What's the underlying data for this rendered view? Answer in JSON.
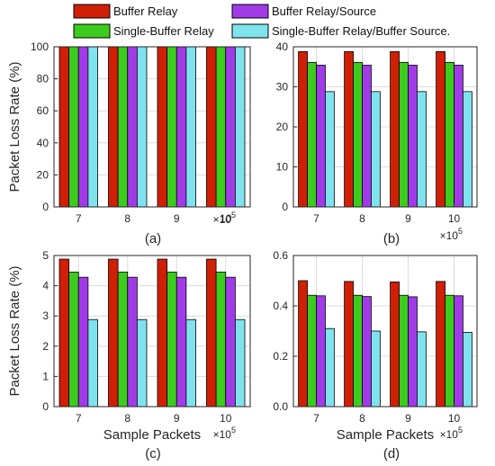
{
  "legend": {
    "items": [
      {
        "label": "Buffer Relay",
        "color": "#d11f05"
      },
      {
        "label": "Buffer Relay/Source",
        "color": "#a13be8"
      },
      {
        "label": "Single-Buffer Relay",
        "color": "#3bcc1e"
      },
      {
        "label": "Single-Buffer Relay/Buffer Source.",
        "color": "#7fe3ee"
      }
    ]
  },
  "chart_data": [
    {
      "type": "bar",
      "panel": "(a)",
      "categories": [
        "7",
        "8",
        "9",
        "10"
      ],
      "x_multiplier": "×10^5",
      "ylabel": "Packet Loss Rate (%)",
      "xlabel": "",
      "ylim": [
        0,
        100
      ],
      "yticks": [
        0,
        20,
        40,
        60,
        80,
        100
      ],
      "series": [
        {
          "name": "Buffer Relay",
          "values": [
            100,
            100,
            100,
            100
          ]
        },
        {
          "name": "Single-Buffer Relay",
          "values": [
            100,
            100,
            100,
            100
          ]
        },
        {
          "name": "Buffer Relay/Source",
          "values": [
            100,
            100,
            100,
            100
          ]
        },
        {
          "name": "Single-Buffer Relay/Buffer Source.",
          "values": [
            100,
            100,
            100,
            100
          ]
        }
      ]
    },
    {
      "type": "bar",
      "panel": "(b)",
      "categories": [
        "7",
        "8",
        "9",
        "10"
      ],
      "x_multiplier": "×10^5",
      "ylabel": "",
      "xlabel": "",
      "ylim": [
        0,
        40
      ],
      "yticks": [
        0,
        10,
        20,
        30,
        40
      ],
      "series": [
        {
          "name": "Buffer Relay",
          "values": [
            38.8,
            38.8,
            38.8,
            38.8
          ]
        },
        {
          "name": "Single-Buffer Relay",
          "values": [
            36.1,
            36.1,
            36.1,
            36.1
          ]
        },
        {
          "name": "Buffer Relay/Source",
          "values": [
            35.4,
            35.4,
            35.4,
            35.4
          ]
        },
        {
          "name": "Single-Buffer Relay/Buffer Source.",
          "values": [
            28.8,
            28.8,
            28.8,
            28.8
          ]
        }
      ]
    },
    {
      "type": "bar",
      "panel": "(c)",
      "categories": [
        "7",
        "8",
        "9",
        "10"
      ],
      "x_multiplier": "×10^5",
      "ylabel": "Packet Loss Rate (%)",
      "xlabel": "Sample Packets",
      "ylim": [
        0,
        5
      ],
      "yticks": [
        0,
        1,
        2,
        3,
        4,
        5
      ],
      "series": [
        {
          "name": "Buffer Relay",
          "values": [
            4.88,
            4.88,
            4.88,
            4.88
          ]
        },
        {
          "name": "Single-Buffer Relay",
          "values": [
            4.45,
            4.45,
            4.45,
            4.45
          ]
        },
        {
          "name": "Buffer Relay/Source",
          "values": [
            4.28,
            4.28,
            4.28,
            4.28
          ]
        },
        {
          "name": "Single-Buffer Relay/Buffer Source.",
          "values": [
            2.88,
            2.88,
            2.88,
            2.88
          ]
        }
      ]
    },
    {
      "type": "bar",
      "panel": "(d)",
      "categories": [
        "7",
        "8",
        "9",
        "10"
      ],
      "x_multiplier": "×10^5",
      "ylabel": "",
      "xlabel": "Sample Packets",
      "ylim": [
        0,
        0.6
      ],
      "yticks": [
        0,
        0.2,
        0.4,
        0.6
      ],
      "series": [
        {
          "name": "Buffer Relay",
          "values": [
            0.5,
            0.497,
            0.495,
            0.497
          ]
        },
        {
          "name": "Single-Buffer Relay",
          "values": [
            0.442,
            0.442,
            0.442,
            0.442
          ]
        },
        {
          "name": "Buffer Relay/Source",
          "values": [
            0.44,
            0.437,
            0.436,
            0.44
          ]
        },
        {
          "name": "Single-Buffer Relay/Buffer Source.",
          "values": [
            0.31,
            0.3,
            0.297,
            0.295
          ]
        }
      ]
    }
  ]
}
